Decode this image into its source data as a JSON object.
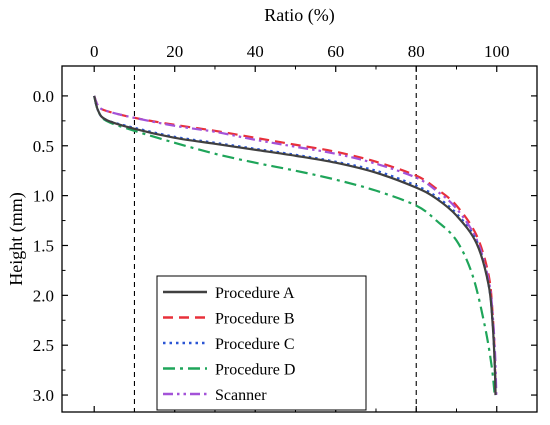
{
  "chart_data": {
    "type": "line",
    "xlabel": "Ratio (%)",
    "ylabel": "Height (mm)",
    "x_axis_position": "top",
    "y_axis_inverted": true,
    "xlim": [
      -8,
      110
    ],
    "ylim": [
      -0.3,
      3.17
    ],
    "x_ticks": [
      0,
      20,
      40,
      60,
      80,
      100
    ],
    "x_tick_labels": [
      "0",
      "20",
      "40",
      "60",
      "80",
      "100"
    ],
    "y_ticks": [
      0.0,
      0.5,
      1.0,
      1.5,
      2.0,
      2.5,
      3.0
    ],
    "y_tick_labels": [
      "0.0",
      "0.5",
      "1.0",
      "1.5",
      "2.0",
      "2.5",
      "3.0"
    ],
    "vertical_reference_lines": [
      10,
      80
    ],
    "grid": false,
    "legend_position": "bottom-left",
    "series": [
      {
        "name": "Procedure A",
        "color": "#404040",
        "dash": "solid",
        "points": [
          [
            0,
            0.0
          ],
          [
            1,
            0.15
          ],
          [
            3,
            0.24
          ],
          [
            10,
            0.33
          ],
          [
            20,
            0.42
          ],
          [
            30,
            0.48
          ],
          [
            40,
            0.54
          ],
          [
            50,
            0.6
          ],
          [
            60,
            0.67
          ],
          [
            70,
            0.77
          ],
          [
            80,
            0.92
          ],
          [
            85,
            1.03
          ],
          [
            90,
            1.2
          ],
          [
            95,
            1.48
          ],
          [
            98,
            1.9
          ],
          [
            99,
            2.3
          ],
          [
            99.5,
            2.7
          ],
          [
            99.7,
            3.0
          ]
        ]
      },
      {
        "name": "Procedure B",
        "color": "#e8303a",
        "dash": "dash",
        "points": [
          [
            0,
            0.0
          ],
          [
            1,
            0.1
          ],
          [
            3,
            0.15
          ],
          [
            10,
            0.22
          ],
          [
            20,
            0.29
          ],
          [
            30,
            0.35
          ],
          [
            40,
            0.42
          ],
          [
            50,
            0.49
          ],
          [
            60,
            0.56
          ],
          [
            70,
            0.66
          ],
          [
            80,
            0.8
          ],
          [
            85,
            0.93
          ],
          [
            90,
            1.1
          ],
          [
            95,
            1.4
          ],
          [
            98,
            1.8
          ],
          [
            99,
            2.2
          ],
          [
            99.5,
            2.6
          ],
          [
            99.7,
            3.0
          ]
        ]
      },
      {
        "name": "Procedure C",
        "color": "#2a55d4",
        "dash": "dot",
        "points": [
          [
            0,
            0.0
          ],
          [
            1,
            0.15
          ],
          [
            3,
            0.24
          ],
          [
            10,
            0.32
          ],
          [
            20,
            0.41
          ],
          [
            30,
            0.47
          ],
          [
            40,
            0.53
          ],
          [
            50,
            0.59
          ],
          [
            60,
            0.66
          ],
          [
            70,
            0.75
          ],
          [
            80,
            0.9
          ],
          [
            85,
            1.01
          ],
          [
            90,
            1.18
          ],
          [
            95,
            1.45
          ],
          [
            98,
            1.9
          ],
          [
            99,
            2.3
          ],
          [
            99.5,
            2.7
          ],
          [
            99.7,
            3.0
          ]
        ]
      },
      {
        "name": "Procedure D",
        "color": "#1fa55a",
        "dash": "dashdot",
        "points": [
          [
            0,
            0.0
          ],
          [
            1,
            0.15
          ],
          [
            3,
            0.25
          ],
          [
            10,
            0.35
          ],
          [
            20,
            0.47
          ],
          [
            30,
            0.58
          ],
          [
            40,
            0.67
          ],
          [
            50,
            0.75
          ],
          [
            60,
            0.84
          ],
          [
            70,
            0.95
          ],
          [
            80,
            1.1
          ],
          [
            85,
            1.25
          ],
          [
            90,
            1.45
          ],
          [
            94,
            1.8
          ],
          [
            97,
            2.3
          ],
          [
            98.7,
            2.7
          ],
          [
            99.5,
            3.0
          ]
        ]
      },
      {
        "name": "Scanner",
        "color": "#a352d8",
        "dash": "dashdotdot",
        "points": [
          [
            0,
            0.0
          ],
          [
            1,
            0.1
          ],
          [
            3,
            0.15
          ],
          [
            10,
            0.22
          ],
          [
            20,
            0.3
          ],
          [
            30,
            0.36
          ],
          [
            40,
            0.44
          ],
          [
            50,
            0.51
          ],
          [
            60,
            0.58
          ],
          [
            70,
            0.68
          ],
          [
            80,
            0.82
          ],
          [
            85,
            0.95
          ],
          [
            90,
            1.13
          ],
          [
            95,
            1.44
          ],
          [
            98,
            1.85
          ],
          [
            99,
            2.2
          ],
          [
            99.6,
            2.6
          ],
          [
            99.9,
            3.0
          ]
        ]
      }
    ]
  }
}
